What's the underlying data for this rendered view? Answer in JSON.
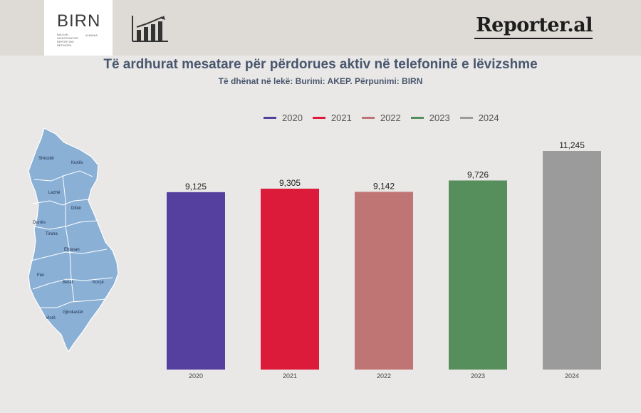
{
  "header": {
    "birn_logo_text": "BIRN",
    "birn_tagline": "BALKAN INVESTIGATIVE REPORTING NETWORK",
    "birn_country": "ALBANIA",
    "brand_right": "Reporter.al"
  },
  "chart_data": {
    "type": "bar",
    "title": "Të ardhurat mesatare për përdorues aktiv në telefoninë e lëvizshme",
    "subtitle": "Të dhënat në lekë: Burimi: AKEP. Përpunimi: BIRN",
    "categories": [
      "2020",
      "2021",
      "2022",
      "2023",
      "2024"
    ],
    "values": [
      9125,
      9305,
      9142,
      9726,
      11245
    ],
    "value_labels": [
      "9,125",
      "9,305",
      "9,142",
      "9,726",
      "11,245"
    ],
    "colors": [
      "#5540a0",
      "#dc1a3a",
      "#c07575",
      "#578f5c",
      "#9b9b9b"
    ],
    "legend": [
      "2020",
      "2021",
      "2022",
      "2023",
      "2024"
    ],
    "legend_position": "top-center",
    "grid": false
  },
  "map": {
    "regions": [
      "Shkodër",
      "Kukës",
      "Lezhë",
      "Dibër",
      "Durrës",
      "Tirana",
      "Elbasan",
      "Fier",
      "Berat",
      "Korçë",
      "Gjirokastër",
      "Vlorë"
    ]
  }
}
